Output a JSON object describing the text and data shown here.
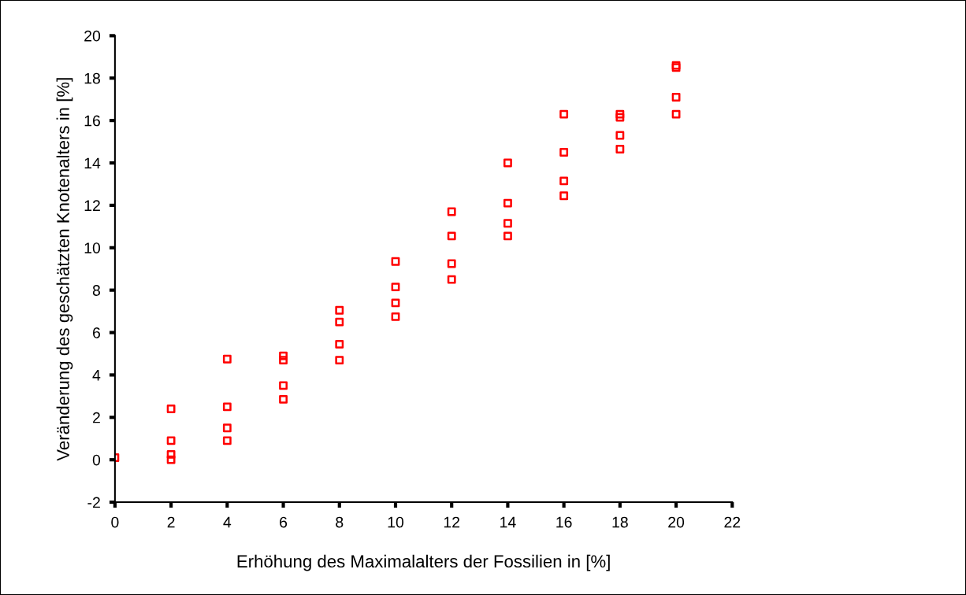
{
  "chart_data": {
    "type": "scatter",
    "xlabel": "Erhöhung des Maximalalters der Fossilien in [%]",
    "ylabel": "Veränderung des geschätzten Knotenalters in [%]",
    "x": [
      0,
      2,
      2,
      2,
      2,
      4,
      4,
      4,
      4,
      6,
      6,
      6,
      6,
      8,
      8,
      8,
      8,
      10,
      10,
      10,
      10,
      12,
      12,
      12,
      12,
      14,
      14,
      14,
      14,
      16,
      16,
      16,
      16,
      18,
      18,
      18,
      18,
      20,
      20,
      20,
      20
    ],
    "series": [
      {
        "color": "#ff0000",
        "values": [
          0.1,
          2.4,
          0.9,
          0.25,
          0,
          4.75,
          2.5,
          1.5,
          0.9,
          4.9,
          4.7,
          3.5,
          2.85,
          7.05,
          6.5,
          5.45,
          4.7,
          9.35,
          8.15,
          7.4,
          6.75,
          11.7,
          10.55,
          9.25,
          8.5,
          14.0,
          12.1,
          11.15,
          10.55,
          16.3,
          14.5,
          13.15,
          12.45,
          16.3,
          16.15,
          15.3,
          14.65,
          18.6,
          18.5,
          17.1,
          16.3
        ]
      }
    ],
    "xlim": [
      0,
      22
    ],
    "xticks": [
      0,
      2,
      4,
      6,
      8,
      10,
      12,
      14,
      16,
      18,
      20,
      22
    ],
    "ylim": [
      -2,
      20
    ],
    "yticks": [
      -2,
      0,
      2,
      4,
      6,
      8,
      10,
      12,
      14,
      16,
      18,
      20
    ],
    "marker": "square",
    "grid": false,
    "legend": false
  }
}
